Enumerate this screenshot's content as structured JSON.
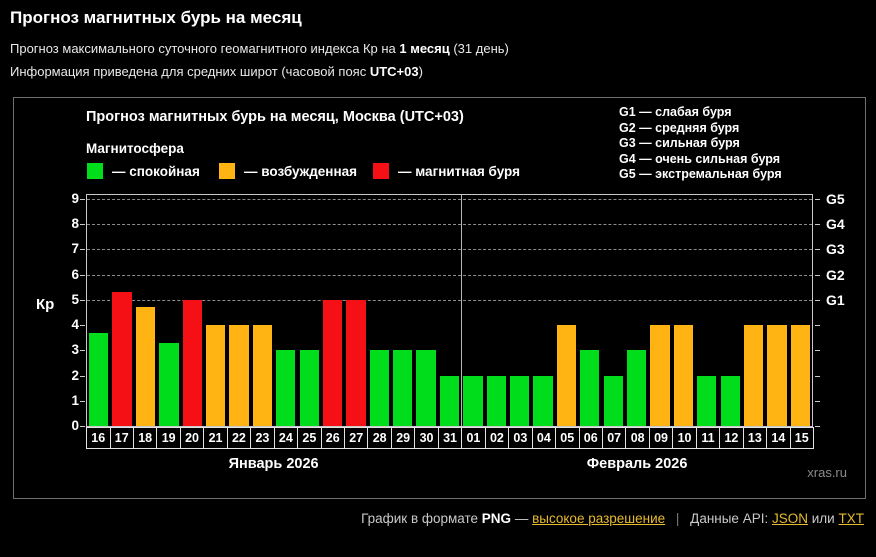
{
  "header": {
    "title": "Прогноз магнитных бурь на месяц",
    "subtitle1_prefix": "Прогноз максимального суточного геомагнитного индекса Кр на ",
    "subtitle1_bold": "1 месяц",
    "subtitle1_suffix": " (31 день)",
    "subtitle2_prefix": "Информация приведена для средних широт (часовой пояс ",
    "subtitle2_bold": "UTC+03",
    "subtitle2_suffix": ")"
  },
  "chart": {
    "title": "Прогноз магнитных бурь на месяц, Москва (UTC+03)",
    "legend_title": "Магнитосфера",
    "legend": [
      {
        "status": "quiet",
        "label": "— спокойная",
        "color": "#00dd1b"
      },
      {
        "status": "excited",
        "label": "— возбужденная",
        "color": "#ffb414"
      },
      {
        "status": "storm",
        "label": "— магнитная буря",
        "color": "#f51016"
      }
    ],
    "g_legend": [
      "G1 — слабая буря",
      "G2 — средняя буря",
      "G3 — сильная буря",
      "G4 — очень сильная буря",
      "G5 — экстремальная буря"
    ],
    "ylabel": "Кр",
    "watermark": "xras.ru"
  },
  "chart_data": {
    "type": "bar",
    "title": "Прогноз магнитных бурь на месяц, Москва (UTC+03)",
    "ylabel": "Кр",
    "ylim": [
      0,
      9
    ],
    "yticks": [
      0,
      1,
      2,
      3,
      4,
      5,
      6,
      7,
      8,
      9
    ],
    "gridlines": [
      5,
      6,
      7,
      8,
      9
    ],
    "right_axis": [
      {
        "value": 5,
        "label": "G1"
      },
      {
        "value": 6,
        "label": "G2"
      },
      {
        "value": 7,
        "label": "G3"
      },
      {
        "value": 8,
        "label": "G4"
      },
      {
        "value": 9,
        "label": "G5"
      }
    ],
    "categories": [
      "16",
      "17",
      "18",
      "19",
      "20",
      "21",
      "22",
      "23",
      "24",
      "25",
      "26",
      "27",
      "28",
      "29",
      "30",
      "31",
      "01",
      "02",
      "03",
      "04",
      "05",
      "06",
      "07",
      "08",
      "09",
      "10",
      "11",
      "12",
      "13",
      "14",
      "15"
    ],
    "values": [
      3.7,
      5.3,
      4.7,
      3.3,
      5,
      4,
      4,
      4,
      3,
      3,
      5,
      5,
      3,
      3,
      3,
      2,
      2,
      2,
      2,
      2,
      4,
      3,
      2,
      3,
      4,
      4,
      2,
      2,
      4,
      4,
      4
    ],
    "statuses": [
      "quiet",
      "storm",
      "excited",
      "quiet",
      "storm",
      "excited",
      "excited",
      "excited",
      "quiet",
      "quiet",
      "storm",
      "storm",
      "quiet",
      "quiet",
      "quiet",
      "quiet",
      "quiet",
      "quiet",
      "quiet",
      "quiet",
      "excited",
      "quiet",
      "quiet",
      "quiet",
      "excited",
      "excited",
      "quiet",
      "quiet",
      "excited",
      "excited",
      "excited"
    ],
    "months": [
      {
        "label": "Январь 2026",
        "start_index": 0,
        "count": 16
      },
      {
        "label": "Февраль 2026",
        "start_index": 16,
        "count": 15
      }
    ]
  },
  "footer": {
    "format_prefix": "График в формате",
    "format_name": "PNG",
    "dash": "—",
    "hires_link": "высокое разрешение",
    "separator": "|",
    "api_prefix": "Данные API:",
    "api_json_link": "JSON",
    "api_or": "или",
    "api_txt_link": "TXT",
    "link_color": "#e6bb2e"
  }
}
